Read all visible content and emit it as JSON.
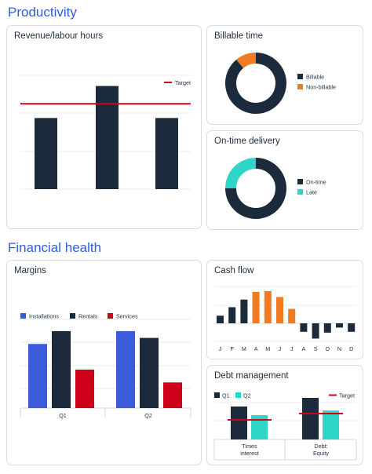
{
  "sections": {
    "productivity": "Productivity",
    "financial": "Financial health"
  },
  "colors": {
    "navy": "#1c2b3c",
    "red": "#d0021b",
    "orange": "#f07b20",
    "teal": "#2fd6c8",
    "blue": "#3b5bdb",
    "grid": "#e4e6ea"
  },
  "chart_data": [
    {
      "id": "revenue",
      "type": "bar",
      "title": "Revenue/labour hours",
      "categories": [
        "",
        "",
        ""
      ],
      "values": [
        2.0,
        2.9,
        2.0
      ],
      "target": 2.4,
      "legend": [
        "Target"
      ],
      "ylim": [
        0,
        3.2
      ],
      "grid": true
    },
    {
      "id": "billable",
      "type": "pie",
      "title": "Billable time",
      "labels": [
        "Billable",
        "Non-billable"
      ],
      "values": [
        89,
        11
      ]
    },
    {
      "id": "ontime",
      "type": "pie",
      "title": "On-time delivery",
      "labels": [
        "On-time",
        "Late"
      ],
      "values": [
        75,
        25
      ]
    },
    {
      "id": "margins",
      "type": "bar",
      "title": "Margins",
      "categories": [
        "Q1",
        "Q2"
      ],
      "series": [
        {
          "name": "Installations",
          "values": [
            85,
            102
          ]
        },
        {
          "name": "Rentals",
          "values": [
            102,
            93
          ]
        },
        {
          "name": "Services",
          "values": [
            51,
            34
          ]
        }
      ],
      "ylim": [
        0,
        130
      ],
      "grid": true
    },
    {
      "id": "cashflow",
      "type": "bar",
      "title": "Cash flow",
      "categories": [
        "J",
        "F",
        "M",
        "A",
        "M",
        "J",
        "J",
        "A",
        "S",
        "O",
        "N",
        "D"
      ],
      "values": [
        9,
        19,
        28,
        37,
        38,
        31,
        17,
        -10,
        -18,
        -11,
        -5,
        -10
      ],
      "ylim": [
        -20,
        40
      ],
      "grid": true
    },
    {
      "id": "debt",
      "type": "bar",
      "title": "Debt management",
      "categories": [
        "Times interest",
        "Debt: Equity"
      ],
      "series": [
        {
          "name": "Q1",
          "values": [
            42,
            53
          ]
        },
        {
          "name": "Q2",
          "values": [
            31,
            37
          ]
        }
      ],
      "targets": [
        25,
        33
      ],
      "legend": [
        "Q1",
        "Q2",
        "Target"
      ],
      "ylim": [
        0,
        60
      ],
      "grid": true
    }
  ]
}
